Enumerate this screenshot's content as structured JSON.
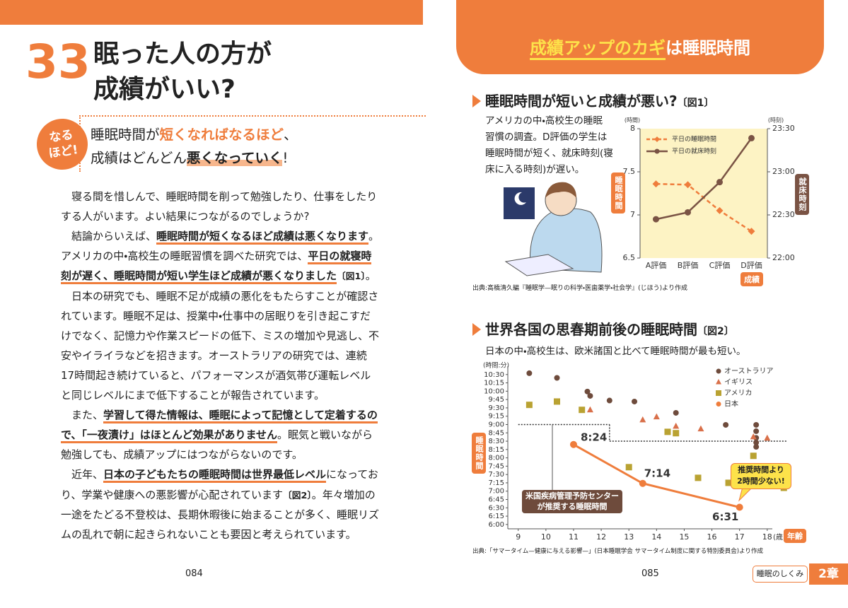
{
  "left_page": {
    "number": "33",
    "title": [
      "眠った人の方が",
      "成績がいい?"
    ],
    "badge": [
      "なる",
      "ほど!"
    ],
    "lead": [
      [
        "睡眠時間が",
        {
          "t": "短くなればなるほど",
          "s": "orange"
        },
        "、"
      ],
      [
        "成績はどんどん",
        {
          "t": "悪くなっていく",
          "s": "mark"
        },
        "!"
      ]
    ],
    "body": [
      [
        [
          "寝る間を惜しんで、睡眠時間を削って勉強したり、仕事をしたり"
        ],
        [
          "する人がいます。よい結果につながるのでしょうか?"
        ]
      ],
      [
        [
          "結論からいえば、",
          {
            "t": "睡眠時間が短くなるほど成績は悪くなります",
            "s": "emph"
          },
          "。"
        ],
        [
          "アメリカの中・高校生の睡眠習慣を調べた研究では、",
          {
            "t": "平日の就寝時",
            "s": "emph"
          }
        ],
        [
          {
            "t": "刻が遅く、睡眠時間が短い学生ほど成績が悪くなりました",
            "s": "emph"
          },
          {
            "t": "〔図1〕",
            "s": "ref"
          },
          "。"
        ]
      ],
      [
        [
          "日本の研究でも、睡眠不足が成績の悪化をもたらすことが確認さ"
        ],
        [
          "れています。睡眠不足は、授業中・仕事中の居眠りを引き起こすだ"
        ],
        [
          "けでなく、記憶力や作業スピードの低下、ミスの増加や見逃し、不"
        ],
        [
          "安やイライラなどを招きます。オーストラリアの研究では、連続"
        ],
        [
          "17時間起き続けていると、パフォーマンスが酒気帯び運転レベル"
        ],
        [
          "と同じレベルにまで低下することが報告されています。"
        ]
      ],
      [
        [
          "また、",
          {
            "t": "学習して得た情報は、睡眠によって記憶として定着するの",
            "s": "emph"
          }
        ],
        [
          {
            "t": "で、「一夜漬け」はほとんど効果がありません",
            "s": "emph"
          },
          "。眠気と戦いながら"
        ],
        [
          "勉強しても、成績アップにはつながらないのです。"
        ]
      ],
      [
        [
          "近年、",
          {
            "t": "日本の子どもたちの睡眠時間は世界最低レベル",
            "s": "emph"
          },
          "になってお"
        ],
        [
          "り、学業や健康への悪影響が心配されています",
          {
            "t": "〔図2〕",
            "s": "ref"
          },
          "。年々増加の"
        ],
        [
          "一途をたどる不登校は、長期休暇後に始まることが多く、睡眠リズ"
        ],
        [
          "ムの乱れで朝に起きられないことも要因と考えられています。"
        ]
      ]
    ],
    "page_number": "084"
  },
  "right_page": {
    "banner": [
      {
        "t": "成績アップのカギ",
        "s": "highlight"
      },
      "は睡眠時間"
    ],
    "page_number": "085",
    "chapter_name": "睡眠のしくみ",
    "chapter": "2章"
  },
  "chart_data": [
    {
      "type": "line",
      "title": "睡眠時間が短いと成績が悪い?",
      "figure": "〔図1〕",
      "description": [
        "アメリカの中・高校生の睡眠",
        "習慣の調査。D評価の学生は",
        "睡眠時間が短く、就床時刻(寝",
        "床に入る時刻)が遅い。"
      ],
      "categories": [
        "A評価",
        "B評価",
        "C評価",
        "D評価"
      ],
      "xlabel": "成績",
      "ylabel": "睡眠時間",
      "yunit": "(時間)",
      "y2label": "就床時刻",
      "y2unit": "(時刻)",
      "ylim": [
        6.5,
        8
      ],
      "yticks": [
        6.5,
        7,
        7.5,
        8
      ],
      "y2lim": [
        22,
        23.5
      ],
      "y2ticks": [
        {
          "value": 22,
          "label": "22:00"
        },
        {
          "value": 22.5,
          "label": "22:30"
        },
        {
          "value": 23,
          "label": "23:00"
        },
        {
          "value": 23.5,
          "label": "23:30"
        }
      ],
      "series": [
        {
          "name": "平日の睡眠時間",
          "color": "#ef7d3c",
          "dashed": true,
          "marker": "diamond",
          "values": [
            7.36,
            7.35,
            7.05,
            6.81
          ]
        },
        {
          "name": "平日の就床時刻",
          "color": "#7a5344",
          "dashed": false,
          "marker": "circle",
          "axis": "y2",
          "values": [
            22.45,
            22.53,
            22.88,
            23.39
          ]
        }
      ],
      "source": "出典:高橋清久編『睡眠学—眠りの科学・医歯薬学・社会学』(じほう)より作成"
    },
    {
      "type": "scatter",
      "title": "世界各国の思春期前後の睡眠時間",
      "figure": "〔図2〕",
      "subtitle": "日本の中・高校生は、欧米諸国と比べて睡眠時間が最も短い。",
      "xlabel": "年齢",
      "xunit": "(歳)",
      "ylabel": "睡眠時間",
      "yunit": "(時間:分)",
      "xlim": [
        8.7,
        18.9
      ],
      "xticks": [
        9,
        10,
        11,
        12,
        13,
        14,
        15,
        16,
        17,
        18
      ],
      "ylim": [
        5.87,
        10.75
      ],
      "yticks": [
        {
          "value": 6,
          "label": "6:00"
        },
        {
          "value": 6.25,
          "label": "6:15"
        },
        {
          "value": 6.5,
          "label": "6:30"
        },
        {
          "value": 6.75,
          "label": "6:45"
        },
        {
          "value": 7,
          "label": "7:00"
        },
        {
          "value": 7.25,
          "label": "7:15"
        },
        {
          "value": 7.5,
          "label": "7:30"
        },
        {
          "value": 7.75,
          "label": "7:45"
        },
        {
          "value": 8,
          "label": "8:00"
        },
        {
          "value": 8.25,
          "label": "8:15"
        },
        {
          "value": 8.5,
          "label": "8:30"
        },
        {
          "value": 8.75,
          "label": "8:45"
        },
        {
          "value": 9,
          "label": "9:00"
        },
        {
          "value": 9.25,
          "label": "9:15"
        },
        {
          "value": 9.5,
          "label": "9:30"
        },
        {
          "value": 9.75,
          "label": "9:45"
        },
        {
          "value": 10,
          "label": "10:00"
        },
        {
          "value": 10.25,
          "label": "10:15"
        },
        {
          "value": 10.5,
          "label": "10:30"
        }
      ],
      "series": [
        {
          "name": "オーストラリア",
          "color": "#6e4b3c",
          "marker": "circle",
          "x": [
            9.4,
            10.4,
            11.5,
            11.6,
            12.3,
            13.2,
            14.7,
            16.5,
            17.6,
            17.6,
            17.6,
            17.6,
            17.6
          ],
          "values": [
            10.54,
            10.4,
            9.99,
            9.86,
            9.72,
            9.69,
            9.35,
            8.99,
            8.99,
            8.8,
            8.6,
            8.46,
            8.33
          ]
        },
        {
          "name": "イギリス",
          "color": "#d9704a",
          "marker": "triangle",
          "x": [
            11.6,
            13.5,
            14.0,
            14.7,
            15.6,
            17.5,
            18.0
          ],
          "values": [
            9.44,
            9.14,
            9.23,
            8.95,
            8.87,
            8.63,
            8.59
          ]
        },
        {
          "name": "アメリカ",
          "color": "#b9a232",
          "marker": "square",
          "x": [
            9.4,
            10.4,
            11.3,
            14.4,
            14.7,
            13.0,
            15.5,
            16.6,
            17.5,
            17.5,
            18.6
          ],
          "values": [
            9.59,
            9.69,
            9.44,
            8.78,
            8.74,
            7.72,
            7.4,
            7.25,
            8.06,
            7.7,
            7.1
          ]
        },
        {
          "name": "日本",
          "color": "#ef7d3c",
          "marker": "circle",
          "line": true,
          "x": [
            11,
            13.5,
            17
          ],
          "values": [
            8.4,
            7.233,
            6.517
          ],
          "value_labels": [
            "8:24",
            "7:14",
            "6:31"
          ]
        }
      ],
      "recommended": {
        "label": [
          "米国疾病管理予防センター",
          "が推奨する睡眠時間"
        ],
        "segments": [
          {
            "x": [
              9,
              12.3
            ],
            "value": 9
          },
          {
            "x": [
              12.3,
              18.7
            ],
            "value": 8.5
          }
        ]
      },
      "callout": [
        "推奨時間より",
        "2時間少ない!"
      ],
      "source": "出典:「サマータイム—健康に与える影響—」(日本睡眠学会 サマータイム制度に関する特別委員会)より作成"
    }
  ]
}
